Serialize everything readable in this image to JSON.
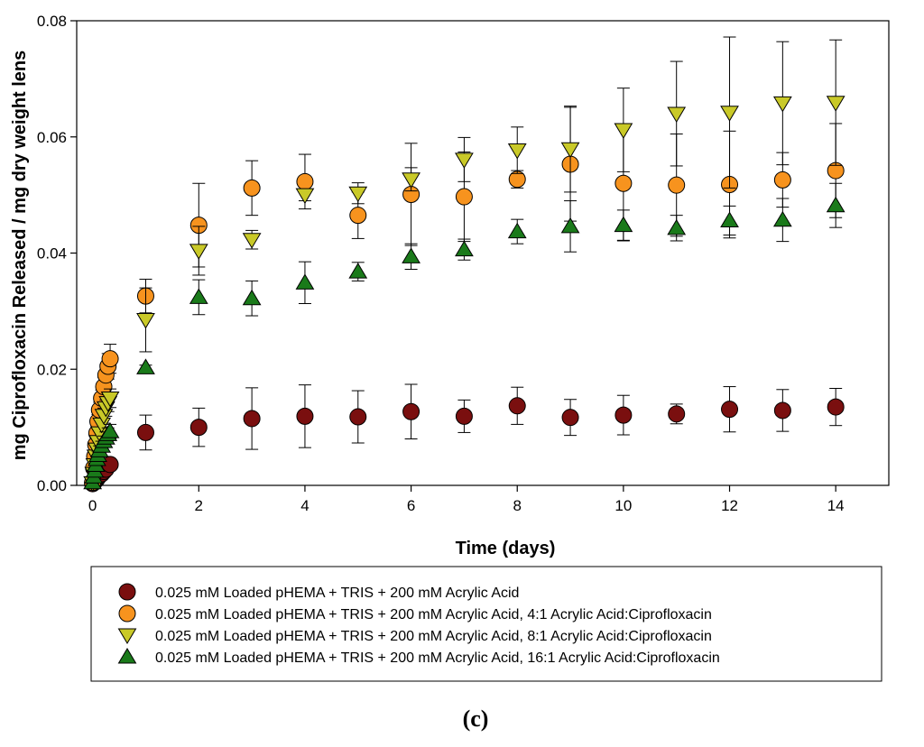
{
  "chart_data": {
    "type": "scatter",
    "title": "",
    "xlabel": "Time (days)",
    "ylabel": "mg Ciprofloxacin Released / mg dry weight lens",
    "xlim": [
      -0.3,
      15
    ],
    "ylim": [
      0,
      0.08
    ],
    "xticks": [
      0,
      2,
      4,
      6,
      8,
      10,
      12,
      14
    ],
    "yticks": [
      0.0,
      0.02,
      0.04,
      0.06,
      0.08
    ],
    "ytick_labels": [
      "0.00",
      "0.02",
      "0.04",
      "0.06",
      "0.08"
    ],
    "grid": false,
    "legend_position": "bottom",
    "panel_label": "(c)",
    "series": [
      {
        "name": "0.025 mM Loaded pHEMA + TRIS + 200 mM Acrylic Acid",
        "marker": "circle",
        "color": "#7a0f0f",
        "x": [
          0,
          0.02,
          0.04,
          0.06,
          0.08,
          0.1,
          0.13,
          0.17,
          0.21,
          0.25,
          0.33,
          1,
          2,
          3,
          4,
          5,
          6,
          7,
          8,
          9,
          10,
          11,
          12,
          13,
          14
        ],
        "y": [
          0.0003,
          0.0005,
          0.0007,
          0.0009,
          0.0011,
          0.0014,
          0.0017,
          0.002,
          0.0024,
          0.0028,
          0.0036,
          0.0091,
          0.01,
          0.0115,
          0.0119,
          0.0118,
          0.0127,
          0.0119,
          0.0137,
          0.0117,
          0.0121,
          0.0123,
          0.0131,
          0.0129,
          0.0135
        ],
        "err": [
          0.0002,
          0.0002,
          0.0003,
          0.0003,
          0.0003,
          0.0004,
          0.0004,
          0.0005,
          0.0005,
          0.0006,
          0.0008,
          0.003,
          0.0033,
          0.0053,
          0.0054,
          0.0045,
          0.0047,
          0.0028,
          0.0032,
          0.0031,
          0.0034,
          0.0017,
          0.0039,
          0.0036,
          0.0032
        ]
      },
      {
        "name": "0.025 mM Loaded pHEMA + TRIS + 200 mM Acrylic Acid, 4:1 Acrylic Acid:Ciprofloxacin",
        "marker": "circle",
        "color": "#f7931e",
        "x": [
          0,
          0.02,
          0.04,
          0.06,
          0.08,
          0.1,
          0.13,
          0.17,
          0.21,
          0.25,
          0.29,
          0.33,
          1,
          2,
          3,
          4,
          5,
          6,
          7,
          8,
          9,
          10,
          11,
          12,
          13,
          14
        ],
        "y": [
          0.0005,
          0.003,
          0.005,
          0.007,
          0.009,
          0.011,
          0.013,
          0.015,
          0.017,
          0.019,
          0.0205,
          0.0218,
          0.0326,
          0.0448,
          0.0512,
          0.0523,
          0.0465,
          0.0501,
          0.0497,
          0.0527,
          0.0553,
          0.052,
          0.0517,
          0.0518,
          0.0526,
          0.0542
        ],
        "err": [
          0.0004,
          0.0006,
          0.0008,
          0.0009,
          0.001,
          0.0012,
          0.0013,
          0.0014,
          0.0016,
          0.0018,
          0.0022,
          0.0025,
          0.0029,
          0.0072,
          0.0047,
          0.0047,
          0.004,
          0.0088,
          0.0077,
          0.0015,
          0.0098,
          0.0099,
          0.0088,
          0.0092,
          0.0047,
          0.0081
        ]
      },
      {
        "name": "0.025 mM Loaded pHEMA + TRIS + 200 mM Acrylic Acid, 8:1 Acrylic Acid:Ciprofloxacin",
        "marker": "triangle-down",
        "color": "#c9c928",
        "x": [
          0,
          0.02,
          0.04,
          0.06,
          0.08,
          0.1,
          0.13,
          0.17,
          0.21,
          0.25,
          0.29,
          0.33,
          1,
          2,
          3,
          4,
          5,
          6,
          7,
          8,
          9,
          10,
          11,
          12,
          13,
          14
        ],
        "y": [
          0.0004,
          0.002,
          0.0035,
          0.005,
          0.0062,
          0.0075,
          0.009,
          0.0105,
          0.012,
          0.0133,
          0.0142,
          0.015,
          0.0285,
          0.0404,
          0.0423,
          0.05,
          0.0503,
          0.0527,
          0.0561,
          0.0577,
          0.0579,
          0.0612,
          0.064,
          0.0642,
          0.0658,
          0.0659
        ],
        "err": [
          0.0003,
          0.0005,
          0.0006,
          0.0007,
          0.0008,
          0.0009,
          0.001,
          0.0011,
          0.0013,
          0.0014,
          0.0015,
          0.0016,
          0.0055,
          0.0042,
          0.0016,
          0.001,
          0.0018,
          0.002,
          0.0038,
          0.004,
          0.0074,
          0.0072,
          0.009,
          0.013,
          0.0106,
          0.0108
        ]
      },
      {
        "name": "0.025 mM Loaded pHEMA + TRIS + 200 mM Acrylic Acid, 16:1 Acrylic Acid:Ciprofloxacin",
        "marker": "triangle-up",
        "color": "#1a7a1a",
        "x": [
          0,
          0.02,
          0.04,
          0.06,
          0.08,
          0.1,
          0.13,
          0.17,
          0.21,
          0.25,
          0.29,
          0.33,
          1,
          2,
          3,
          4,
          5,
          6,
          7,
          8,
          9,
          10,
          11,
          12,
          13,
          14
        ],
        "y": [
          0.0005,
          0.0015,
          0.0025,
          0.0035,
          0.0045,
          0.0052,
          0.006,
          0.0068,
          0.0076,
          0.0082,
          0.0088,
          0.0093,
          0.0203,
          0.0324,
          0.0322,
          0.0349,
          0.0368,
          0.0394,
          0.0406,
          0.0437,
          0.0446,
          0.0448,
          0.0443,
          0.0456,
          0.0457,
          0.0482
        ],
        "err": [
          0.0003,
          0.0004,
          0.0005,
          0.0006,
          0.0006,
          0.0007,
          0.0008,
          0.0008,
          0.0009,
          0.001,
          0.0011,
          0.0012,
          0.0004,
          0.003,
          0.003,
          0.0036,
          0.0016,
          0.0022,
          0.0018,
          0.0021,
          0.0044,
          0.0026,
          0.0022,
          0.0025,
          0.0037,
          0.0038
        ]
      }
    ]
  }
}
